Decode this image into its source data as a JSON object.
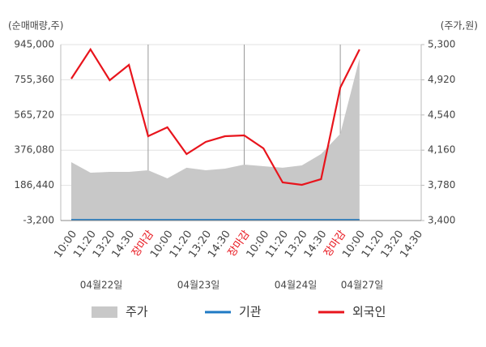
{
  "chart_data": {
    "type": "line",
    "y_label": "(순매매량,주)",
    "y2_label": "(주가,원)",
    "categories": [
      "10:00",
      "11:20",
      "13:20",
      "14:30",
      "장마감",
      "10:00",
      "11:20",
      "13:20",
      "14:30",
      "장마감",
      "10:00",
      "11:20",
      "13:20",
      "14:30",
      "장마감",
      "10:00",
      "11:20",
      "13:20",
      "14:30"
    ],
    "dates": [
      "04월22일",
      "04월23일",
      "04월24일",
      "04월27일"
    ],
    "ylim": [
      -3200,
      945000
    ],
    "yticks": [
      {
        "value": -3200,
        "label": "-3,200"
      },
      {
        "value": 186440,
        "label": "186,440"
      },
      {
        "value": 376080,
        "label": "376,080"
      },
      {
        "value": 565720,
        "label": "565,720"
      },
      {
        "value": 755360,
        "label": "755,360"
      },
      {
        "value": 945000,
        "label": "945,000"
      }
    ],
    "y2lim": [
      3400,
      5300
    ],
    "y2ticks": [
      {
        "value": 3400,
        "label": "3,400"
      },
      {
        "value": 3780,
        "label": "3,780"
      },
      {
        "value": 4160,
        "label": "4,160"
      },
      {
        "value": 4540,
        "label": "4,540"
      },
      {
        "value": 4920,
        "label": "4,920"
      },
      {
        "value": 5300,
        "label": "5,300"
      }
    ],
    "grid": true,
    "series": [
      {
        "name": "주가",
        "color": "#c8c8c8",
        "kind": "area",
        "axis": "y2",
        "values": [
          4030,
          3917,
          3925,
          3925,
          3943,
          3855,
          3970,
          3943,
          3960,
          4004,
          3987,
          3970,
          3995,
          4118,
          4337,
          5150,
          null,
          null,
          null
        ]
      },
      {
        "name": "기관",
        "color": "#1f7ac4",
        "kind": "line",
        "values": [
          0,
          0,
          0,
          0,
          0,
          0,
          0,
          0,
          0,
          0,
          0,
          0,
          0,
          0,
          0,
          0,
          null,
          null,
          null
        ]
      },
      {
        "name": "외국인",
        "color": "#e8141c",
        "kind": "line",
        "values": [
          761000,
          919000,
          752800,
          835800,
          451200,
          499300,
          355000,
          420700,
          451200,
          455600,
          385700,
          202200,
          189100,
          219700,
          713400,
          919000,
          null,
          null,
          null
        ]
      }
    ]
  }
}
